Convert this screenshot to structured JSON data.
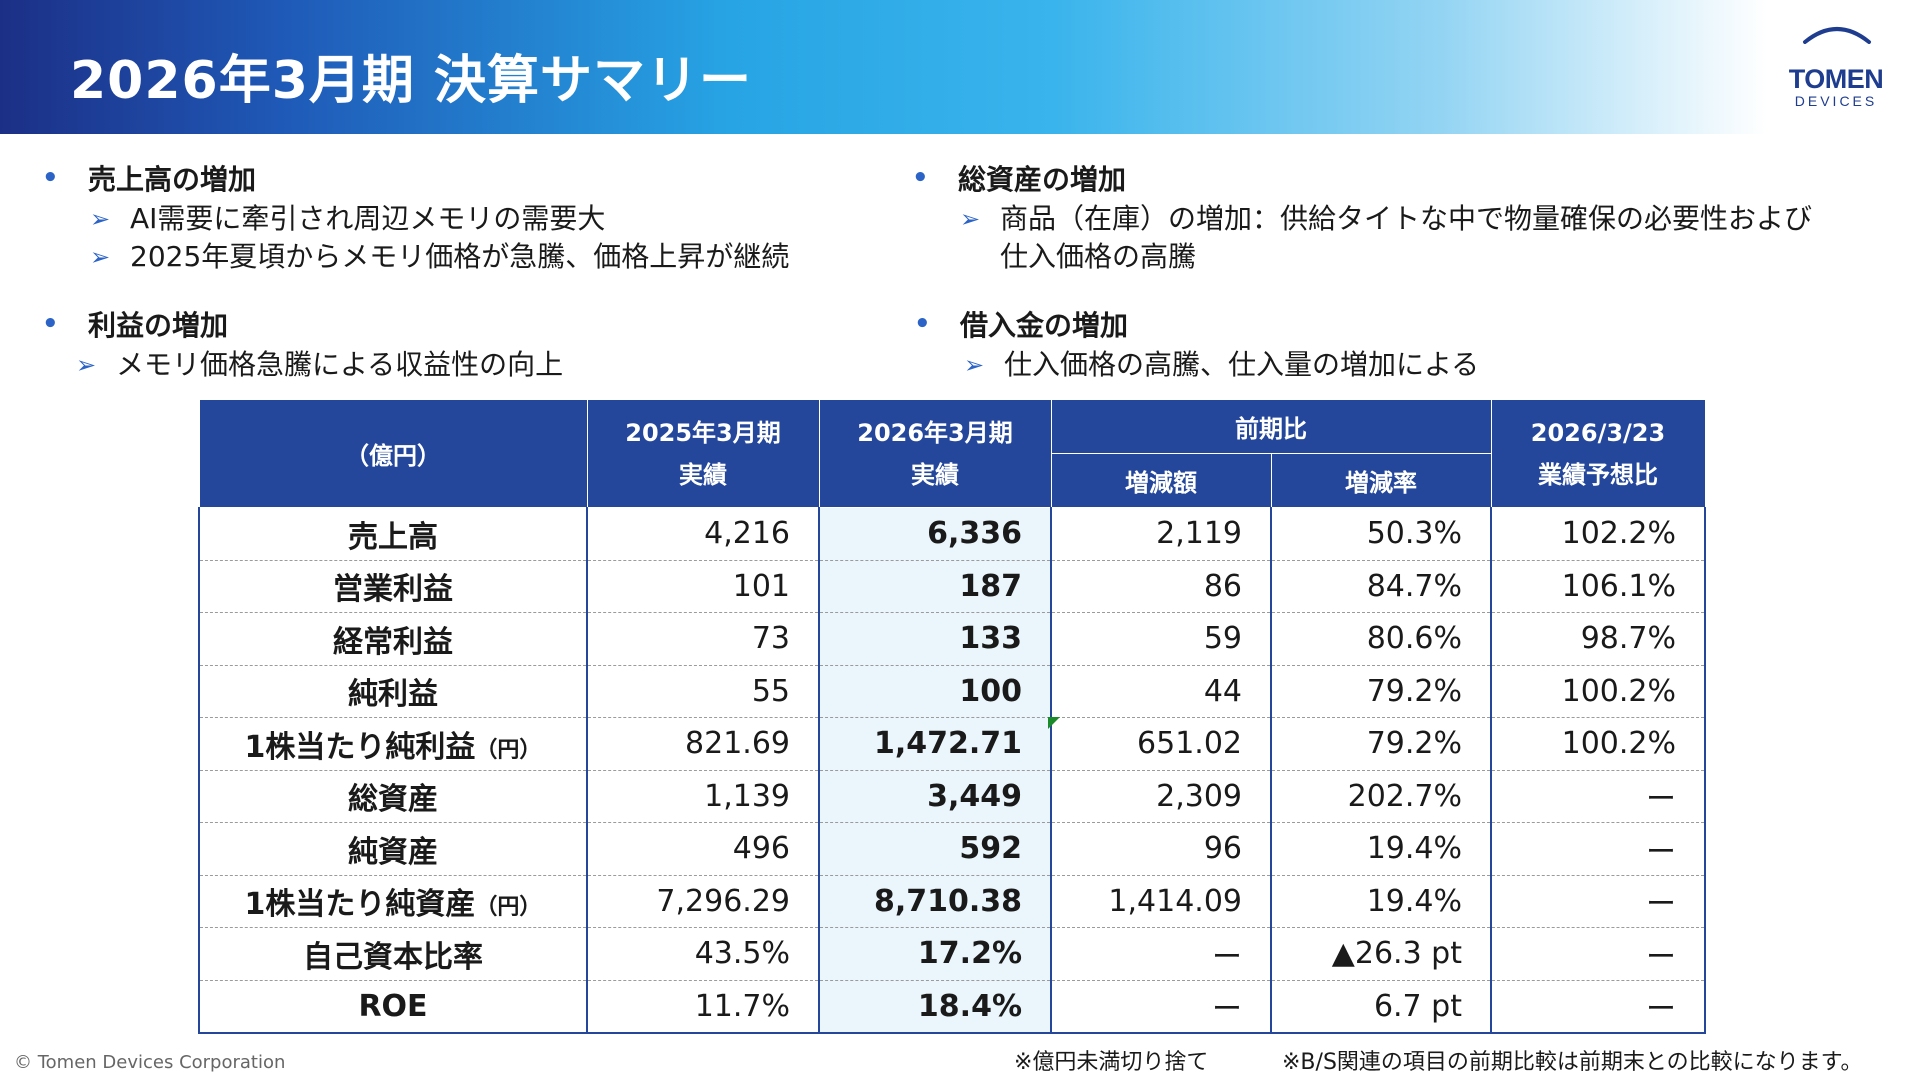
{
  "title": "2026年3月期 決算サマリー",
  "logo": {
    "main": "TOMEN",
    "sub": "DEVICES"
  },
  "bullets": {
    "sales": {
      "head": "売上高の増加",
      "items": [
        "AI需要に牽引され周辺メモリの需要大",
        "2025年夏頃からメモリ価格が急騰、価格上昇が継続"
      ]
    },
    "profit": {
      "head": "利益の増加",
      "items": [
        "メモリ価格急騰による収益性の向上"
      ]
    },
    "assets": {
      "head": "総資産の増加",
      "items": [
        "商品（在庫）の増加：供給タイトな中で物量確保の必要性および",
        "仕入価格の高騰"
      ]
    },
    "borrowings": {
      "head": "借入金の増加",
      "items": [
        "仕入価格の高騰、仕入量の増加による"
      ]
    }
  },
  "table": {
    "headers": {
      "unit": "（億円）",
      "prev_line1": "2025年3月期",
      "prev_line2": "実績",
      "cur_line1": "2026年3月期",
      "cur_line2": "実績",
      "yoy": "前期比",
      "diff": "増減額",
      "rate": "増減率",
      "fc_line1": "2026/3/23",
      "fc_line2": "業績予想比"
    },
    "rows": [
      {
        "label": "売上高",
        "prev": "4,216",
        "cur": "6,336",
        "diff": "2,119",
        "rate": "50.3%",
        "fc": "102.2%"
      },
      {
        "label": "営業利益",
        "prev": "101",
        "cur": "187",
        "diff": "86",
        "rate": "84.7%",
        "fc": "106.1%"
      },
      {
        "label": "経常利益",
        "prev": "73",
        "cur": "133",
        "diff": "59",
        "rate": "80.6%",
        "fc": "98.7%"
      },
      {
        "label": "純利益",
        "prev": "55",
        "cur": "100",
        "diff": "44",
        "rate": "79.2%",
        "fc": "100.2%"
      },
      {
        "label": "1株当たり純利益",
        "unit": "（円）",
        "prev": "821.69",
        "cur": "1,472.71",
        "diff": "651.02",
        "rate": "79.2%",
        "fc": "100.2%"
      },
      {
        "label": "総資産",
        "prev": "1,139",
        "cur": "3,449",
        "diff": "2,309",
        "rate": "202.7%",
        "fc": "ー"
      },
      {
        "label": "純資産",
        "prev": "496",
        "cur": "592",
        "diff": "96",
        "rate": "19.4%",
        "fc": "ー"
      },
      {
        "label": "1株当たり純資産",
        "unit": "（円）",
        "prev": "7,296.29",
        "cur": "8,710.38",
        "diff": "1,414.09",
        "rate": "19.4%",
        "fc": "ー"
      },
      {
        "label": "自己資本比率",
        "prev": "43.5%",
        "cur": "17.2%",
        "diff": "ー",
        "rate": "▲26.3 pt",
        "fc": "ー"
      },
      {
        "label": "ROE",
        "prev": "11.7%",
        "cur": "18.4%",
        "diff": "ー",
        "rate": "6.7 pt",
        "fc": "ー"
      }
    ]
  },
  "footer": {
    "copyright": "© Tomen Devices Corporation",
    "note1": "※億円未満切り捨て",
    "note2": "※B/S関連の項目の前期比較は前期末との比較になります。"
  },
  "colors": {
    "header_navy": "#24479b",
    "highlight_column": "#eaf6fc",
    "bullet_blue": "#2b63c6"
  }
}
